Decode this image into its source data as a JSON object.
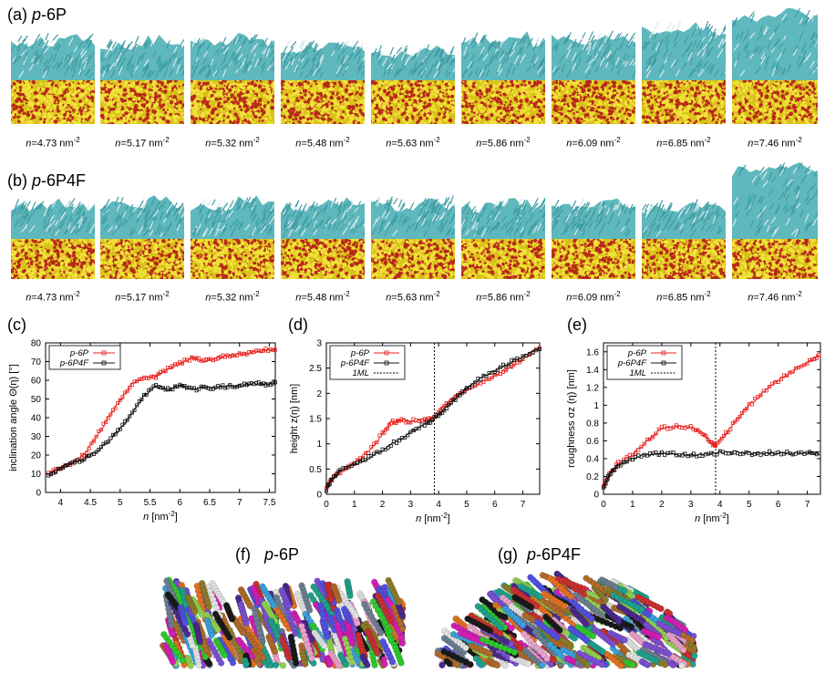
{
  "panels": {
    "a": {
      "letter": "(a)",
      "prefix": "p",
      "suffix": "-6P"
    },
    "b": {
      "letter": "(b)",
      "prefix": "p",
      "suffix": "-6P4F"
    },
    "c": {
      "letter": "(c)"
    },
    "d": {
      "letter": "(d)"
    },
    "e": {
      "letter": "(e)"
    },
    "f": {
      "letter": "(f)",
      "prefix": "p",
      "suffix": "-6P"
    },
    "g": {
      "letter": "(g)",
      "prefix": "p",
      "suffix": "-6P4F"
    }
  },
  "coverages": [
    "4.73",
    "5.17",
    "5.32",
    "5.48",
    "5.63",
    "5.86",
    "6.09",
    "6.85",
    "7.46"
  ],
  "coverage_unit": "nm",
  "coverage_exp": "-2",
  "coverage_var": "n",
  "colors": {
    "p6p": "#e8211d",
    "p6p4f": "#111111",
    "teal": "#5fb8bd",
    "substrate_yellow": "#d9c21a",
    "substrate_red": "#b8281a"
  },
  "chart_data": [
    {
      "id": "c",
      "type": "line",
      "xlabel_var": "n",
      "xlabel_unit": " [nm",
      "xlabel_exp": "-2",
      "xlabel_close": "]",
      "ylabel": "inclination angle Θ(η) [°]",
      "xlim": [
        3.75,
        7.6
      ],
      "ylim": [
        0,
        80
      ],
      "xticks": [
        "4",
        "4.5",
        "5",
        "5.5",
        "6",
        "6.5",
        "7",
        "7.5"
      ],
      "yticks": [
        "0",
        "10",
        "20",
        "30",
        "40",
        "50",
        "60",
        "70",
        "80"
      ],
      "legend": [
        "p-6P",
        "p-6P4F"
      ],
      "legend_position": "top-left",
      "series": [
        {
          "name": "p-6P",
          "color": "#e8211d",
          "x": [
            3.8,
            4.0,
            4.2,
            4.4,
            4.6,
            4.8,
            5.0,
            5.2,
            5.4,
            5.6,
            5.8,
            6.0,
            6.2,
            6.4,
            6.6,
            6.8,
            7.0,
            7.2,
            7.4,
            7.6
          ],
          "y": [
            10,
            13,
            16,
            20,
            30,
            40,
            49,
            58,
            62,
            62,
            66,
            69,
            72,
            70,
            72,
            73,
            74,
            75,
            76,
            77
          ]
        },
        {
          "name": "p-6P4F",
          "color": "#111111",
          "x": [
            3.8,
            4.0,
            4.2,
            4.4,
            4.6,
            4.8,
            5.0,
            5.2,
            5.4,
            5.6,
            5.8,
            6.0,
            6.2,
            6.4,
            6.6,
            6.8,
            7.0,
            7.2,
            7.4,
            7.6
          ],
          "y": [
            9,
            13,
            16,
            18,
            22,
            27,
            34,
            42,
            52,
            57,
            55,
            57,
            55,
            56,
            56,
            57,
            57,
            58,
            58,
            58
          ]
        }
      ]
    },
    {
      "id": "d",
      "type": "line",
      "xlabel_var": "n",
      "xlabel_unit": " [nm",
      "xlabel_exp": "-2",
      "xlabel_close": "]",
      "ylabel": "height z(η) [nm]",
      "xlim": [
        0,
        7.6
      ],
      "ylim": [
        0,
        3
      ],
      "xticks": [
        "0",
        "1",
        "2",
        "3",
        "4",
        "5",
        "6",
        "7"
      ],
      "yticks": [
        "0",
        "0.5",
        "1",
        "1.5",
        "2",
        "2.5",
        "3"
      ],
      "legend": [
        "p-6P",
        "p-6P4F",
        "1ML"
      ],
      "legend_position": "top-left",
      "vline": 3.85,
      "series": [
        {
          "name": "p-6P",
          "color": "#e8211d",
          "x": [
            0,
            0.2,
            0.5,
            1.0,
            1.5,
            2.0,
            2.3,
            2.6,
            3.0,
            3.5,
            3.85,
            4.2,
            4.6,
            5.0,
            5.5,
            6.0,
            6.5,
            7.0,
            7.6
          ],
          "y": [
            0.1,
            0.3,
            0.45,
            0.6,
            0.85,
            1.2,
            1.42,
            1.46,
            1.45,
            1.47,
            1.52,
            1.75,
            1.95,
            2.05,
            2.2,
            2.35,
            2.5,
            2.68,
            2.9
          ]
        },
        {
          "name": "p-6P4F",
          "color": "#111111",
          "x": [
            0,
            0.2,
            0.5,
            1.0,
            1.5,
            2.0,
            2.5,
            3.0,
            3.5,
            3.85,
            4.2,
            4.6,
            5.0,
            5.5,
            6.0,
            6.5,
            7.0,
            7.6
          ],
          "y": [
            0.1,
            0.3,
            0.48,
            0.6,
            0.72,
            0.88,
            1.05,
            1.22,
            1.38,
            1.5,
            1.68,
            1.9,
            2.1,
            2.3,
            2.45,
            2.6,
            2.72,
            2.9
          ]
        }
      ]
    },
    {
      "id": "e",
      "type": "line",
      "xlabel_var": "n",
      "xlabel_unit": " [nm",
      "xlabel_exp": "-2",
      "xlabel_close": "]",
      "ylabel": "roughness σz (η) [nm]",
      "xlim": [
        0,
        7.45
      ],
      "ylim": [
        0,
        1.7
      ],
      "xticks": [
        "0",
        "1",
        "2",
        "3",
        "4",
        "5",
        "6",
        "7"
      ],
      "yticks": [
        "0",
        "0.2",
        "0.4",
        "0.6",
        "0.8",
        "1",
        "1.2",
        "1.4",
        "1.6"
      ],
      "legend": [
        "p-6P",
        "p-6P4F",
        "1ML"
      ],
      "legend_position": "top-left",
      "vline": 3.85,
      "series": [
        {
          "name": "p-6P",
          "color": "#e8211d",
          "x": [
            0,
            0.2,
            0.5,
            1.0,
            1.5,
            2.0,
            2.5,
            3.0,
            3.4,
            3.7,
            3.85,
            4.2,
            4.6,
            5.0,
            5.5,
            6.0,
            6.5,
            7.0,
            7.4
          ],
          "y": [
            0.08,
            0.22,
            0.35,
            0.45,
            0.6,
            0.74,
            0.76,
            0.75,
            0.68,
            0.58,
            0.55,
            0.68,
            0.85,
            1.0,
            1.15,
            1.28,
            1.38,
            1.48,
            1.56
          ]
        },
        {
          "name": "p-6P4F",
          "color": "#111111",
          "x": [
            0,
            0.2,
            0.5,
            1.0,
            1.5,
            2.0,
            2.5,
            3.0,
            3.5,
            4.0,
            4.5,
            5.0,
            5.5,
            6.0,
            6.5,
            7.0,
            7.4
          ],
          "y": [
            0.08,
            0.22,
            0.33,
            0.4,
            0.44,
            0.46,
            0.45,
            0.44,
            0.45,
            0.47,
            0.47,
            0.46,
            0.46,
            0.47,
            0.46,
            0.46,
            0.46
          ]
        }
      ]
    }
  ]
}
